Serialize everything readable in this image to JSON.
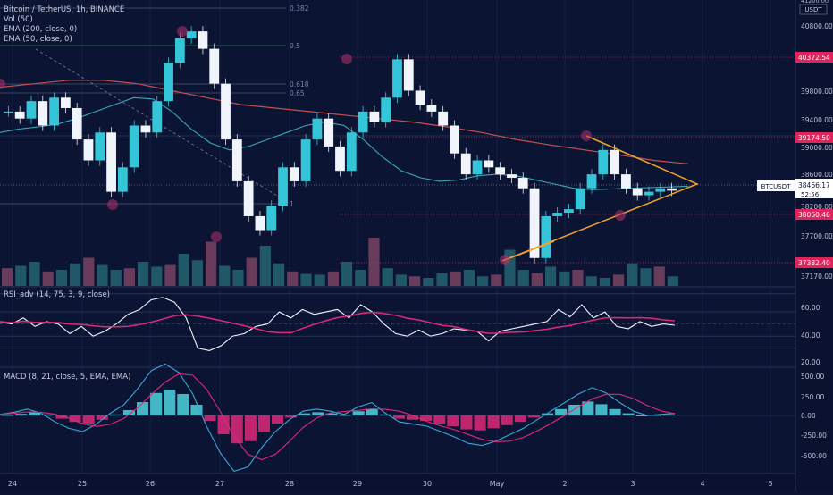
{
  "header": {
    "title": "Bitcoin / TetherUS, 1h, BINANCE",
    "indicators": [
      "Vol (50)",
      "EMA (200, close, 0)",
      "EMA (50, close, 0)"
    ],
    "currency": "USDT",
    "currency_top": "41200.00"
  },
  "rsi_label": "RSI_adv (14, 75, 3, 9, close)",
  "macd_label": "MACD (8, 21, close, 5, EMA, EMA)",
  "price_axis": {
    "ticks": [
      "40800.00",
      "40400.00",
      "39800.00",
      "39400.00",
      "39000.00",
      "38600.00",
      "38200.00",
      "37700.00",
      "37170.00"
    ],
    "price_tags": [
      "40372.54",
      "39174.50",
      "38060.46",
      "37382.40"
    ],
    "current_symbol": "BTCUSDT",
    "current_price": "38466.17",
    "countdown": "52:56"
  },
  "fib_labels": [
    "0.382",
    "0.5",
    "0.618",
    "0.65",
    "1"
  ],
  "rsi_axis": [
    "60.00",
    "40.00",
    "20.00"
  ],
  "macd_axis": [
    "500.00",
    "250.00",
    "0.00",
    "-250.00",
    "-500.00"
  ],
  "time_axis": [
    "24",
    "25",
    "26",
    "27",
    "28",
    "29",
    "30",
    "May",
    "2",
    "3",
    "4",
    "5"
  ],
  "chart_data": {
    "type": "line",
    "title": "Bitcoin / TetherUS, 1h, BINANCE",
    "ylim": [
      37100,
      41200
    ],
    "series": [
      {
        "name": "price",
        "values": [
          39600,
          39500,
          39750,
          39400,
          39800,
          39650,
          39200,
          38900,
          39300,
          38450,
          38800,
          39400,
          39300,
          39750,
          40300,
          40650,
          40750,
          40500,
          40000,
          39200,
          38600,
          38100,
          37900,
          38250,
          38800,
          38600,
          39200,
          39500,
          39100,
          38750,
          39300,
          39600,
          39450,
          39800,
          40350,
          39900,
          39700,
          39600,
          39400,
          39000,
          38700,
          38900,
          38800,
          38700,
          38650,
          38500,
          37500,
          38100,
          38150,
          38200,
          38500,
          38700,
          39050,
          38700,
          38500,
          38400,
          38450,
          38500,
          38466
        ]
      },
      {
        "name": "EMA (50, close, 0)",
        "values": [
          39300,
          39350,
          39380,
          39420,
          39500,
          39600,
          39700,
          39800,
          39780,
          39600,
          39350,
          39150,
          39050,
          39100,
          39200,
          39300,
          39400,
          39450,
          39400,
          39200,
          38950,
          38750,
          38650,
          38600,
          38620,
          38680,
          38700,
          38680,
          38620,
          38560,
          38500,
          38480,
          38490,
          38500,
          38510,
          38520,
          38530
        ]
      },
      {
        "name": "EMA (200, close, 0)",
        "values": [
          39950,
          40000,
          40050,
          40050,
          40000,
          39900,
          39800,
          39700,
          39650,
          39600,
          39550,
          39500,
          39450,
          39380,
          39300,
          39200,
          39120,
          39050,
          38980,
          38900,
          38850
        ]
      }
    ],
    "volume": [
      22,
      25,
      30,
      18,
      20,
      28,
      35,
      26,
      20,
      22,
      30,
      24,
      26,
      40,
      32,
      55,
      25,
      20,
      35,
      50,
      28,
      18,
      15,
      14,
      18,
      30,
      20,
      60,
      22,
      14,
      12,
      10,
      16,
      18,
      20,
      12,
      14,
      45,
      20,
      16,
      24,
      18,
      20,
      12,
      10,
      14,
      28,
      22,
      24,
      12
    ],
    "rsi": [
      52,
      50,
      55,
      48,
      52,
      50,
      42,
      48,
      40,
      44,
      50,
      58,
      62,
      70,
      72,
      68,
      55,
      30,
      28,
      32,
      40,
      42,
      48,
      50,
      60,
      55,
      62,
      58,
      60,
      62,
      55,
      66,
      60,
      50,
      42,
      40,
      45,
      40,
      42,
      46,
      45,
      44,
      36,
      44,
      46,
      48,
      50,
      52,
      62,
      56,
      66,
      55,
      60,
      48,
      46,
      52,
      48,
      50,
      49
    ],
    "macd": [
      10,
      30,
      60,
      20,
      -60,
      -120,
      -150,
      -80,
      20,
      100,
      250,
      420,
      480,
      400,
      200,
      -100,
      -350,
      -520,
      -480,
      -300,
      -150,
      -40,
      40,
      60,
      40,
      10,
      80,
      120,
      20,
      -60,
      -80,
      -100,
      -150,
      -200,
      -260,
      -280,
      -240,
      -180,
      -120,
      -40,
      40,
      120,
      200,
      260,
      210,
      120,
      40,
      0,
      10,
      20
    ]
  }
}
